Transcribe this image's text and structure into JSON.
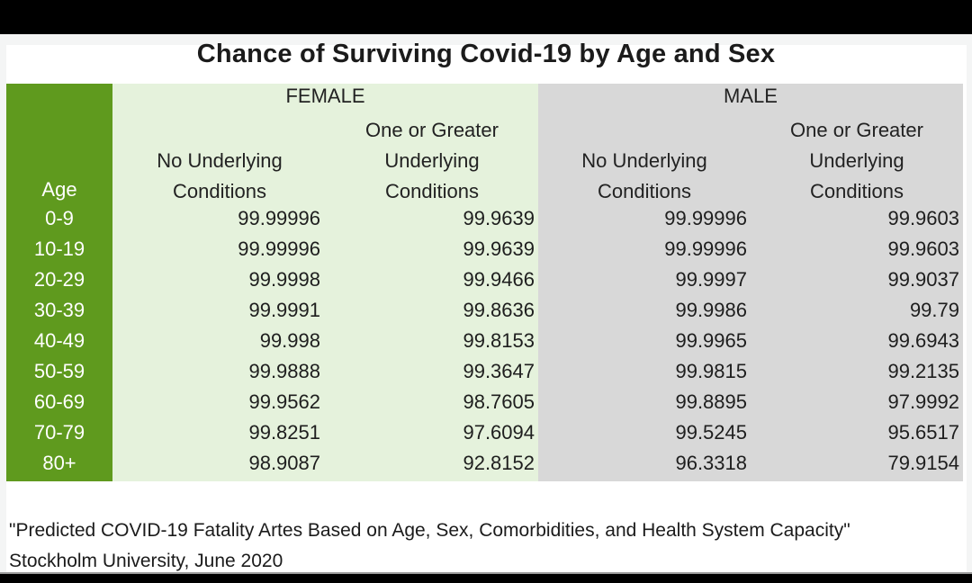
{
  "title": "Chance of Surviving Covid-19 by Age and Sex",
  "chart_data": {
    "type": "table",
    "title": "Chance of Surviving Covid-19 by Age and Sex",
    "groups": [
      "FEMALE",
      "MALE"
    ],
    "row_header": "Age",
    "sub_columns": [
      [
        "No Underlying",
        "Conditions"
      ],
      [
        "One or Greater",
        "Underlying",
        "Conditions"
      ],
      [
        "No Underlying",
        "Conditions"
      ],
      [
        "One or Greater",
        "Underlying",
        "Conditions"
      ]
    ],
    "rows": [
      {
        "age": "0-9",
        "values": [
          "99.99996",
          "99.9639",
          "99.99996",
          "99.9603"
        ]
      },
      {
        "age": "10-19",
        "values": [
          "99.99996",
          "99.9639",
          "99.99996",
          "99.9603"
        ]
      },
      {
        "age": "20-29",
        "values": [
          "99.9998",
          "99.9466",
          "99.9997",
          "99.9037"
        ]
      },
      {
        "age": "30-39",
        "values": [
          "99.9991",
          "99.8636",
          "99.9986",
          "99.79"
        ]
      },
      {
        "age": "40-49",
        "values": [
          "99.998",
          "99.8153",
          "99.9965",
          "99.6943"
        ]
      },
      {
        "age": "50-59",
        "values": [
          "99.9888",
          "99.3647",
          "99.9815",
          "99.2135"
        ]
      },
      {
        "age": "60-69",
        "values": [
          "99.9562",
          "98.7605",
          "99.8895",
          "97.9992"
        ]
      },
      {
        "age": "70-79",
        "values": [
          "99.8251",
          "97.6094",
          "99.5245",
          "95.6517"
        ]
      },
      {
        "age": "80+",
        "values": [
          "98.9087",
          "92.8152",
          "96.3318",
          "79.9154"
        ]
      }
    ]
  },
  "footer": {
    "line1": "\"Predicted COVID-19 Fatality Artes Based on Age, Sex, Comorbidities, and Health System Capacity\"",
    "line2": "Stockholm University, June 2020"
  },
  "colors": {
    "age_column": "#5f9a1e",
    "female_background": "#e5f2dc",
    "male_background": "#d8d8d8",
    "frame": "#000000"
  }
}
